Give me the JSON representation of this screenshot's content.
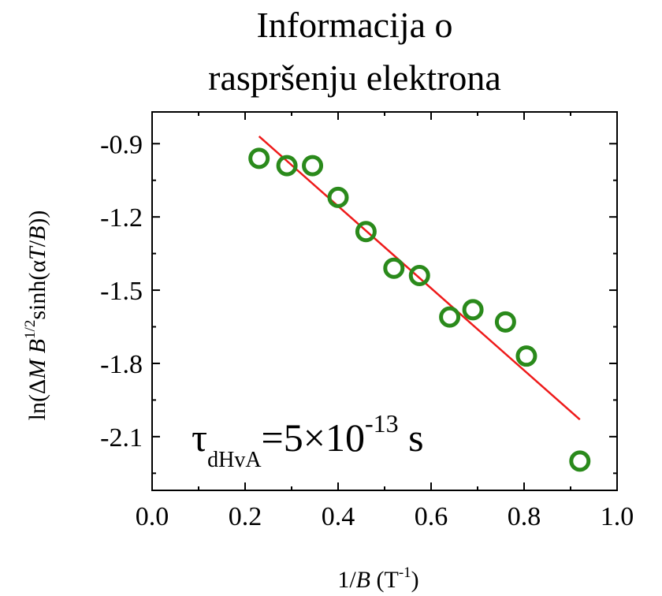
{
  "chart_data": {
    "type": "scatter",
    "title_lines": [
      "Informacija o",
      "raspršenju elektrona"
    ],
    "xlabel": {
      "prefix": "1/",
      "var": "B",
      "unit_open": " (T",
      "unit_sup": "-1",
      "unit_close": ")"
    },
    "ylabel": {
      "open": "ln(Δ",
      "M": "M",
      "B": " B",
      "exp": "1/2",
      "mid": "sinh(α",
      "T": "T",
      "slash": "/",
      "B2": "B",
      "close": "))"
    },
    "xlim": [
      0.0,
      1.0
    ],
    "ylim": [
      -2.32,
      -0.77
    ],
    "xticks": [
      0.0,
      0.2,
      0.4,
      0.6,
      0.8,
      1.0
    ],
    "xtick_labels": [
      "0.0",
      "0.2",
      "0.4",
      "0.6",
      "0.8",
      "1.0"
    ],
    "yticks": [
      -0.9,
      -1.2,
      -1.5,
      -1.8,
      -2.1
    ],
    "ytick_labels": [
      "-0.9",
      "-1.2",
      "-1.5",
      "-1.8",
      "-2.1"
    ],
    "points": [
      {
        "x": 0.23,
        "y": -0.96
      },
      {
        "x": 0.29,
        "y": -0.99
      },
      {
        "x": 0.345,
        "y": -0.99
      },
      {
        "x": 0.4,
        "y": -1.12
      },
      {
        "x": 0.46,
        "y": -1.26
      },
      {
        "x": 0.52,
        "y": -1.41
      },
      {
        "x": 0.575,
        "y": -1.44
      },
      {
        "x": 0.64,
        "y": -1.61
      },
      {
        "x": 0.69,
        "y": -1.58
      },
      {
        "x": 0.76,
        "y": -1.63
      },
      {
        "x": 0.805,
        "y": -1.77
      },
      {
        "x": 0.92,
        "y": -2.2
      }
    ],
    "fit_line": {
      "x": [
        0.23,
        0.92
      ],
      "y": [
        -0.87,
        -2.03
      ]
    },
    "annotation": {
      "tau": "τ",
      "sub": "dHvA",
      "eq": "=5×10",
      "sup": "-13",
      "unit": " s"
    },
    "grid": false,
    "colors": {
      "points": "#2a8a1b",
      "fit": "#ee1a1a",
      "axes": "#000000"
    }
  }
}
